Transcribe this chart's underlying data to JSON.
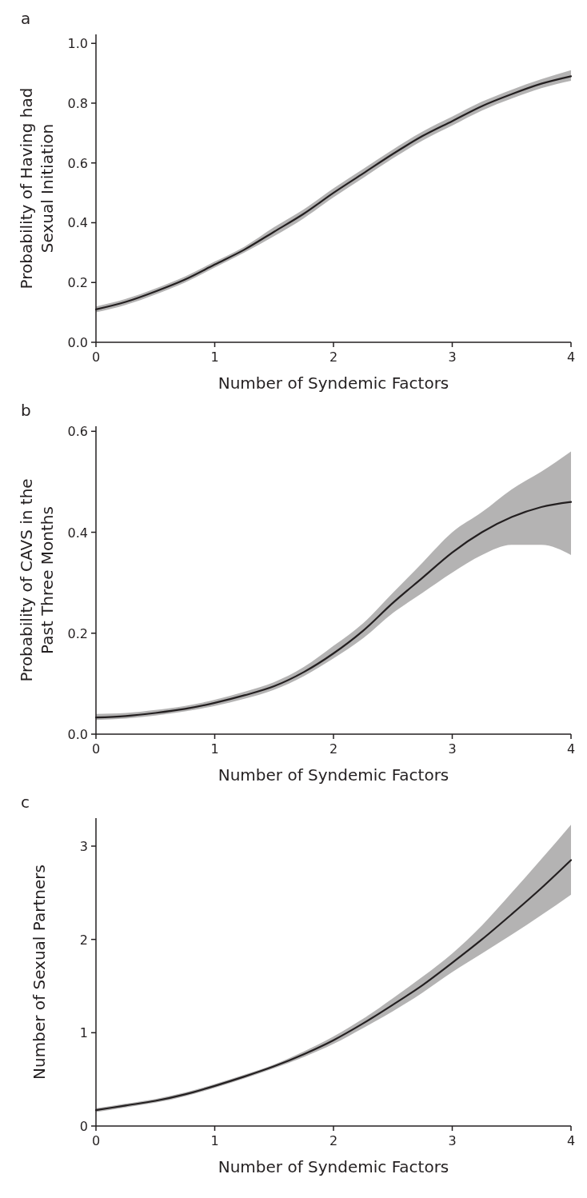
{
  "chart_data": [
    {
      "type": "line",
      "title": "a",
      "xlabel": "Number of Syndemic Factors",
      "ylabel": "Probability of Having had\nSexual Initiation",
      "xlim": [
        0,
        4
      ],
      "xticks": [
        0,
        1,
        2,
        3,
        4
      ],
      "ylim": [
        0,
        1.03
      ],
      "yticks": [
        {
          "value": 0,
          "label": "0.0"
        },
        {
          "value": 0.2,
          "label": "0.2"
        },
        {
          "value": 0.4,
          "label": "0.4"
        },
        {
          "value": 0.6,
          "label": "0.6"
        },
        {
          "value": 0.8,
          "label": "0.8"
        },
        {
          "value": 1,
          "label": "1.0"
        }
      ],
      "x": [
        0,
        0.25,
        0.5,
        0.75,
        1,
        1.25,
        1.5,
        1.75,
        2,
        2.25,
        2.5,
        2.75,
        3,
        3.25,
        3.5,
        3.75,
        4
      ],
      "series": [
        {
          "color": "#231f20",
          "values": [
            0.11,
            0.135,
            0.17,
            0.21,
            0.26,
            0.31,
            0.37,
            0.43,
            0.5,
            0.565,
            0.63,
            0.69,
            0.74,
            0.79,
            0.83,
            0.865,
            0.89
          ],
          "lower": [
            0.1,
            0.125,
            0.16,
            0.2,
            0.25,
            0.3,
            0.355,
            0.415,
            0.485,
            0.55,
            0.615,
            0.675,
            0.725,
            0.775,
            0.815,
            0.85,
            0.875
          ],
          "upper": [
            0.12,
            0.145,
            0.18,
            0.22,
            0.27,
            0.32,
            0.385,
            0.445,
            0.515,
            0.58,
            0.645,
            0.705,
            0.755,
            0.805,
            0.845,
            0.88,
            0.91
          ]
        }
      ]
    },
    {
      "type": "line",
      "title": "b",
      "xlabel": "Number of Syndemic Factors",
      "ylabel": "Probability of CAVS in the\nPast Three Months",
      "xlim": [
        0,
        4
      ],
      "xticks": [
        0,
        1,
        2,
        3,
        4
      ],
      "ylim": [
        0,
        0.61
      ],
      "yticks": [
        {
          "value": 0,
          "label": "0.0"
        },
        {
          "value": 0.2,
          "label": "0.2"
        },
        {
          "value": 0.4,
          "label": "0.4"
        },
        {
          "value": 0.6,
          "label": "0.6"
        }
      ],
      "x": [
        0,
        0.25,
        0.5,
        0.75,
        1,
        1.25,
        1.5,
        1.75,
        2,
        2.25,
        2.5,
        2.75,
        3,
        3.25,
        3.5,
        3.75,
        4
      ],
      "series": [
        {
          "color": "#231f20",
          "values": [
            0.033,
            0.036,
            0.042,
            0.05,
            0.062,
            0.077,
            0.095,
            0.123,
            0.16,
            0.205,
            0.26,
            0.31,
            0.36,
            0.4,
            0.43,
            0.45,
            0.46
          ],
          "lower": [
            0.028,
            0.031,
            0.037,
            0.045,
            0.056,
            0.07,
            0.088,
            0.115,
            0.15,
            0.19,
            0.24,
            0.28,
            0.32,
            0.355,
            0.375,
            0.375,
            0.355
          ],
          "upper": [
            0.04,
            0.042,
            0.048,
            0.056,
            0.068,
            0.084,
            0.103,
            0.133,
            0.175,
            0.22,
            0.28,
            0.34,
            0.4,
            0.44,
            0.485,
            0.52,
            0.56
          ]
        }
      ]
    },
    {
      "type": "line",
      "title": "c",
      "xlabel": "Number of Syndemic Factors",
      "ylabel": "Number of Sexual Partners",
      "xlim": [
        0,
        4
      ],
      "xticks": [
        0,
        1,
        2,
        3,
        4
      ],
      "ylim": [
        0,
        3.3
      ],
      "yticks": [
        0,
        1,
        2,
        3
      ],
      "x": [
        0,
        0.25,
        0.5,
        0.75,
        1,
        1.25,
        1.5,
        1.75,
        2,
        2.25,
        2.5,
        2.75,
        3,
        3.25,
        3.5,
        3.75,
        4
      ],
      "series": [
        {
          "color": "#231f20",
          "values": [
            0.17,
            0.22,
            0.27,
            0.34,
            0.43,
            0.53,
            0.64,
            0.77,
            0.92,
            1.1,
            1.3,
            1.51,
            1.75,
            2,
            2.27,
            2.55,
            2.85
          ],
          "lower": [
            0.15,
            0.2,
            0.25,
            0.32,
            0.41,
            0.51,
            0.62,
            0.74,
            0.88,
            1.05,
            1.23,
            1.43,
            1.65,
            1.85,
            2.05,
            2.26,
            2.48
          ],
          "upper": [
            0.19,
            0.24,
            0.29,
            0.36,
            0.45,
            0.55,
            0.66,
            0.8,
            0.96,
            1.15,
            1.37,
            1.6,
            1.85,
            2.15,
            2.5,
            2.86,
            3.23
          ]
        }
      ]
    }
  ]
}
